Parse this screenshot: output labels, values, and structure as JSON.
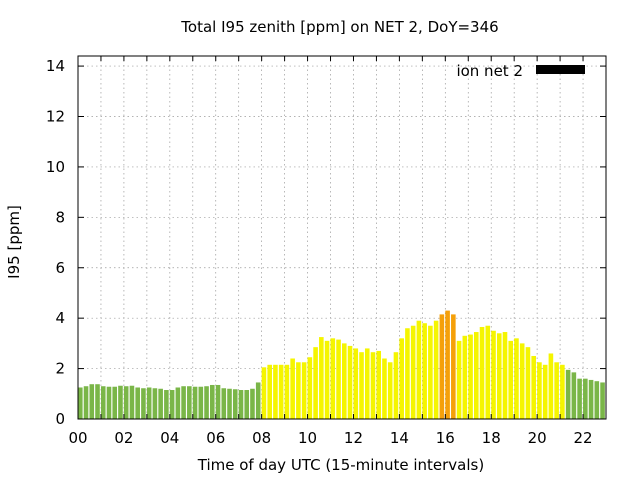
{
  "chart_data": {
    "type": "bar",
    "title": "Total I95 zenith [ppm] on NET 2, DoY=346",
    "xlabel": "Time of day UTC (15-minute intervals)",
    "ylabel": "I95 [ppm]",
    "xlim": [
      0,
      23
    ],
    "ylim": [
      0,
      14.4
    ],
    "x_ticks": [
      "00",
      "02",
      "04",
      "06",
      "08",
      "10",
      "12",
      "14",
      "16",
      "18",
      "20",
      "22"
    ],
    "y_ticks": [
      "0",
      "2",
      "4",
      "6",
      "8",
      "10",
      "12",
      "14"
    ],
    "grid": true,
    "legend": {
      "label": "ion net 2",
      "position": "top-right"
    },
    "interval_hours": 0.25,
    "start_hour": 0,
    "values": [
      1.25,
      1.3,
      1.38,
      1.38,
      1.3,
      1.28,
      1.28,
      1.32,
      1.3,
      1.32,
      1.25,
      1.22,
      1.25,
      1.22,
      1.2,
      1.15,
      1.15,
      1.25,
      1.3,
      1.3,
      1.28,
      1.28,
      1.3,
      1.35,
      1.35,
      1.22,
      1.2,
      1.18,
      1.15,
      1.15,
      1.2,
      1.45,
      2.05,
      2.15,
      2.15,
      2.15,
      2.15,
      2.4,
      2.25,
      2.25,
      2.45,
      2.85,
      3.25,
      3.1,
      3.2,
      3.15,
      3.0,
      2.9,
      2.8,
      2.65,
      2.8,
      2.65,
      2.7,
      2.4,
      2.25,
      2.65,
      3.2,
      3.6,
      3.7,
      3.9,
      3.8,
      3.7,
      3.9,
      4.15,
      4.3,
      4.15,
      3.1,
      3.3,
      3.35,
      3.45,
      3.65,
      3.7,
      3.5,
      3.4,
      3.45,
      3.1,
      3.2,
      3.0,
      2.85,
      2.5,
      2.25,
      2.15,
      2.6,
      2.25,
      2.15,
      1.95,
      1.85,
      1.6,
      1.6,
      1.55,
      1.5,
      1.45
    ],
    "level_thresholds": {
      "yellow": 2.0,
      "orange": 4.0
    },
    "colors": {
      "green": "#7ab648",
      "yellow": "#f5f500",
      "orange": "#f5a00a",
      "legend": "#000000"
    }
  }
}
